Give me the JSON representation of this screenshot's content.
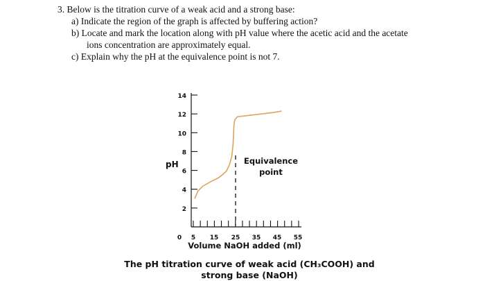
{
  "question": {
    "title": "3. Below is the titration curve of a weak acid and a strong base:",
    "part_a": "a)  Indicate the region of the graph is affected by buffering action?",
    "part_b_line1": "b)  Locate and mark the location along with pH value where the acetic acid and the acetate",
    "part_b_line2": "ions concentration are approximately equal.",
    "part_c": "c)  Explain why the pH at the equivalence point is not 7."
  },
  "chart_data": {
    "type": "line",
    "ylabel": "pH",
    "xlabel": "Volume NaOH added (ml)",
    "y_ticks": [
      "14",
      "12",
      "10",
      "8",
      "6",
      "4",
      "2",
      "0"
    ],
    "x_tick_labels": [
      "5",
      "15",
      "25",
      "35",
      "45",
      "55"
    ],
    "ylim": [
      0,
      14
    ],
    "annotation_line1": "Equivalence",
    "annotation_line2": "point",
    "equivalence_volume": 25,
    "series": [
      {
        "points": [
          [
            0,
            3.0
          ],
          [
            2,
            3.8
          ],
          [
            5,
            4.3
          ],
          [
            10,
            4.8
          ],
          [
            15,
            5.2
          ],
          [
            18,
            5.6
          ],
          [
            20,
            5.9
          ],
          [
            22,
            6.6
          ],
          [
            23.5,
            7.5
          ],
          [
            24.3,
            8.8
          ],
          [
            24.8,
            10.5
          ],
          [
            25,
            11.0
          ],
          [
            25.5,
            11.4
          ],
          [
            27,
            11.7
          ],
          [
            32,
            11.8
          ],
          [
            40,
            11.95
          ],
          [
            50,
            12.15
          ],
          [
            55,
            12.3
          ]
        ]
      }
    ],
    "caption_line1": "The pH titration curve of weak acid (CH₃COOH) and",
    "caption_line2": "strong base (NaOH)"
  }
}
